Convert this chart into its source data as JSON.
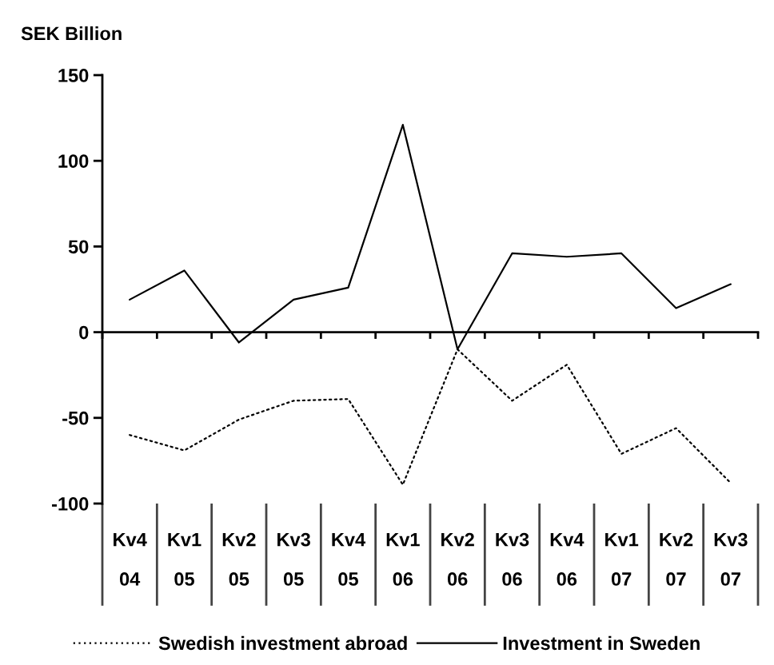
{
  "chart_data": {
    "type": "line",
    "ylabel": "SEK Billion",
    "categories": [
      "Kv4\n04",
      "Kv1\n05",
      "Kv2\n05",
      "Kv3\n05",
      "Kv4\n05",
      "Kv1\n06",
      "Kv2\n06",
      "Kv3\n06",
      "Kv4\n06",
      "Kv1\n07",
      "Kv2\n07",
      "Kv3\n07"
    ],
    "series": [
      {
        "name": "Swedish investment abroad",
        "color": "#000000",
        "line_style": "dotted",
        "values": [
          -60,
          -69,
          -51,
          -40,
          -39,
          -89,
          -10,
          -40,
          -19,
          -71,
          -56,
          -88
        ]
      },
      {
        "name": "Investment in Sweden",
        "color": "#000000",
        "line_style": "solid",
        "values": [
          19,
          36,
          -6,
          19,
          26,
          121,
          -10,
          46,
          44,
          46,
          14,
          28
        ]
      }
    ],
    "ylim": [
      -100,
      150
    ],
    "yticks": [
      -100,
      -50,
      0,
      50,
      100,
      150
    ],
    "legend": "bottom"
  }
}
